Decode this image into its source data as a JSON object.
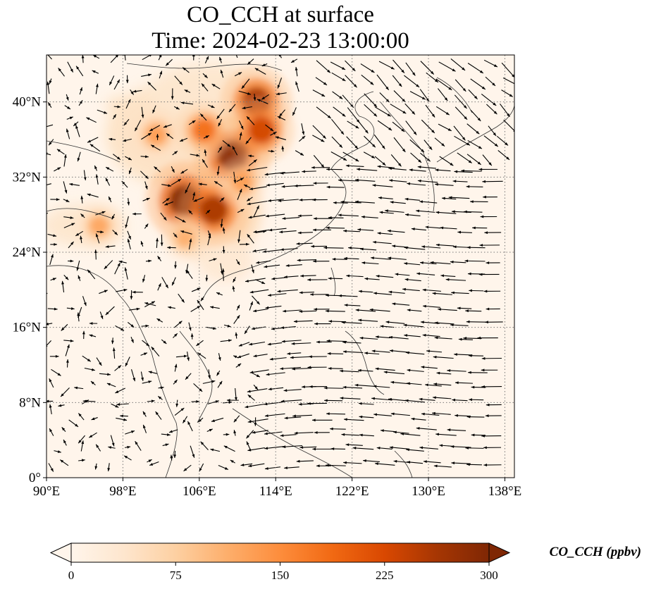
{
  "title": {
    "line1": "CO_CCH at surface",
    "line2": "Time: 2024-02-23 13:00:00"
  },
  "map": {
    "lon_range": [
      90,
      139
    ],
    "lat_range": [
      0,
      45
    ],
    "grid": "dotted",
    "lon_ticks": [
      {
        "value": 90,
        "label": "90°E"
      },
      {
        "value": 98,
        "label": "98°E"
      },
      {
        "value": 106,
        "label": "106°E"
      },
      {
        "value": 114,
        "label": "114°E"
      },
      {
        "value": 122,
        "label": "122°E"
      },
      {
        "value": 130,
        "label": "130°E"
      },
      {
        "value": 138,
        "label": "138°E"
      }
    ],
    "lat_ticks": [
      {
        "value": 0,
        "label": "0°"
      },
      {
        "value": 8,
        "label": "8°N"
      },
      {
        "value": 16,
        "label": "16°N"
      },
      {
        "value": 24,
        "label": "24°N"
      },
      {
        "value": 32,
        "label": "32°N"
      },
      {
        "value": 40,
        "label": "40°N"
      }
    ],
    "field": "CO_CCH",
    "overlay": "wind vectors",
    "hotspots": [
      {
        "lon": 104.5,
        "lat": 29.5,
        "value": 300
      },
      {
        "lon": 107.5,
        "lat": 28.5,
        "value": 260
      },
      {
        "lon": 109.5,
        "lat": 34.3,
        "value": 290
      },
      {
        "lon": 112.0,
        "lat": 40.0,
        "value": 260
      },
      {
        "lon": 112.5,
        "lat": 37.0,
        "value": 230
      },
      {
        "lon": 106.5,
        "lat": 37.0,
        "value": 180
      },
      {
        "lon": 101.5,
        "lat": 36.5,
        "value": 130
      },
      {
        "lon": 95.5,
        "lat": 26.8,
        "value": 120
      },
      {
        "lon": 104.5,
        "lat": 25.5,
        "value": 110
      },
      {
        "lon": 110.5,
        "lat": 31.5,
        "value": 130
      }
    ]
  },
  "colorbar": {
    "label": "CO_CCH (ppbv)",
    "min": 0,
    "max": 300,
    "colormap": [
      "#fff5eb",
      "#fee6ce",
      "#fdd0a2",
      "#fdae6b",
      "#fd8d3c",
      "#f16913",
      "#d94801",
      "#a63603",
      "#7f2704"
    ],
    "ticks": [
      {
        "value": 0,
        "label": "0"
      },
      {
        "value": 75,
        "label": "75"
      },
      {
        "value": 150,
        "label": "150"
      },
      {
        "value": 225,
        "label": "225"
      },
      {
        "value": 300,
        "label": "300"
      }
    ]
  }
}
